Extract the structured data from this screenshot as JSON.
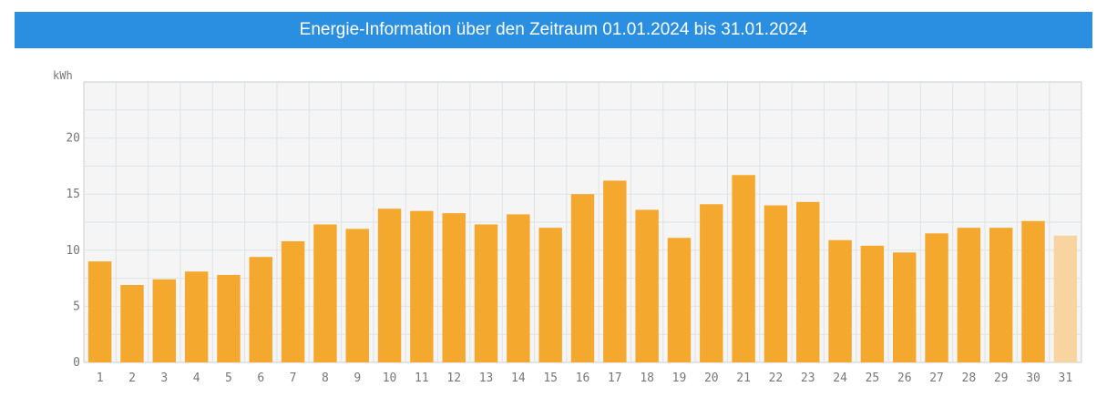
{
  "header": {
    "title": "Energie-Information über den Zeitraum 01.01.2024 bis 31.01.2024"
  },
  "colors": {
    "header_bg": "#2a8fe0",
    "bar": "#f5a82e",
    "bar_partial": "#f8d5a0",
    "plot_bg": "#f5f5f5",
    "grid": "#dde3e8"
  },
  "chart_data": {
    "type": "bar",
    "title": "",
    "xlabel": "",
    "ylabel": "kWh",
    "ylim": [
      0,
      25
    ],
    "yticks": [
      0,
      5,
      10,
      15,
      20
    ],
    "grid": true,
    "categories": [
      "1",
      "2",
      "3",
      "4",
      "5",
      "6",
      "7",
      "8",
      "9",
      "10",
      "11",
      "12",
      "13",
      "14",
      "15",
      "16",
      "17",
      "18",
      "19",
      "20",
      "21",
      "22",
      "23",
      "24",
      "25",
      "26",
      "27",
      "28",
      "29",
      "30",
      "31"
    ],
    "values": [
      9.0,
      6.9,
      7.4,
      8.1,
      7.8,
      9.4,
      10.8,
      12.3,
      11.9,
      13.7,
      13.5,
      13.3,
      12.3,
      13.2,
      12.0,
      15.0,
      16.2,
      13.6,
      11.1,
      14.1,
      16.7,
      14.0,
      14.3,
      10.9,
      10.4,
      9.8,
      11.5,
      12.0,
      12.0,
      12.6,
      11.3
    ],
    "partial_categories": [
      "31"
    ]
  }
}
